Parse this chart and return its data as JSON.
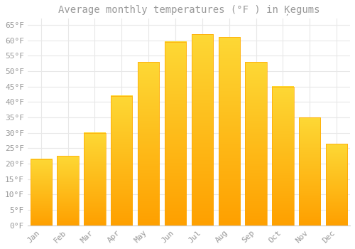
{
  "title": "Average monthly temperatures (°F ) in Ķegums",
  "months": [
    "Jan",
    "Feb",
    "Mar",
    "Apr",
    "May",
    "Jun",
    "Jul",
    "Aug",
    "Sep",
    "Oct",
    "Nov",
    "Dec"
  ],
  "values": [
    21.5,
    22.5,
    30.0,
    42.0,
    53.0,
    59.5,
    62.0,
    61.0,
    53.0,
    45.0,
    35.0,
    26.5
  ],
  "bar_color_top": "#FDD835",
  "bar_color_bottom": "#FFA000",
  "bar_edge_color": "#FFA500",
  "background_color": "#FFFFFF",
  "grid_color": "#E8E8E8",
  "text_color": "#999999",
  "ylim": [
    0,
    67
  ],
  "yticks": [
    0,
    5,
    10,
    15,
    20,
    25,
    30,
    35,
    40,
    45,
    50,
    55,
    60,
    65
  ],
  "title_fontsize": 10,
  "tick_fontsize": 8
}
